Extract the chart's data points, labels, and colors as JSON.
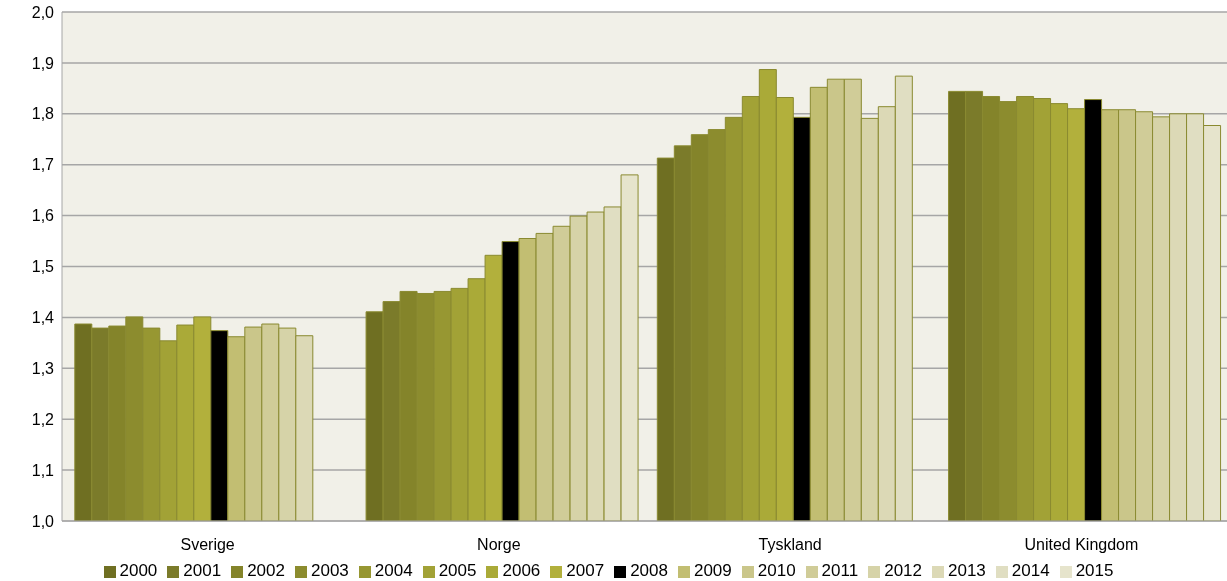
{
  "chart_data": {
    "type": "bar",
    "categories": [
      "Sverige",
      "Norge",
      "Tyskland",
      "United Kingdom"
    ],
    "series": [
      {
        "name": "2000",
        "color": "#6f6f22",
        "values": [
          1.387,
          1.411,
          1.713,
          1.844
        ]
      },
      {
        "name": "2001",
        "color": "#7b7b2a",
        "values": [
          1.379,
          1.431,
          1.737,
          1.844
        ]
      },
      {
        "name": "2002",
        "color": "#84842a",
        "values": [
          1.383,
          1.451,
          1.759,
          1.834
        ]
      },
      {
        "name": "2003",
        "color": "#8c8c2e",
        "values": [
          1.401,
          1.447,
          1.769,
          1.824
        ]
      },
      {
        "name": "2004",
        "color": "#979732",
        "values": [
          1.379,
          1.451,
          1.793,
          1.834
        ]
      },
      {
        "name": "2005",
        "color": "#a2a236",
        "values": [
          1.354,
          1.457,
          1.834,
          1.83
        ]
      },
      {
        "name": "2006",
        "color": "#aaaa38",
        "values": [
          1.385,
          1.476,
          1.887,
          1.82
        ]
      },
      {
        "name": "2007",
        "color": "#b2b03c",
        "values": [
          1.401,
          1.522,
          1.832,
          1.81
        ]
      },
      {
        "name": "2008",
        "color": "#000000",
        "values": [
          1.374,
          1.549,
          1.793,
          1.828
        ]
      },
      {
        "name": "2009",
        "color": "#c2be72",
        "values": [
          1.362,
          1.555,
          1.852,
          1.808
        ]
      },
      {
        "name": "2010",
        "color": "#cac68a",
        "values": [
          1.381,
          1.565,
          1.868,
          1.808
        ]
      },
      {
        "name": "2011",
        "color": "#d0cc98",
        "values": [
          1.387,
          1.579,
          1.868,
          1.804
        ]
      },
      {
        "name": "2012",
        "color": "#d6d3a8",
        "values": [
          1.379,
          1.599,
          1.791,
          1.794
        ]
      },
      {
        "name": "2013",
        "color": "#dcd9b6",
        "values": [
          1.364,
          1.607,
          1.814,
          1.8
        ]
      },
      {
        "name": "2014",
        "color": "#e0dec2",
        "values": [
          null,
          1.617,
          1.874,
          1.8
        ]
      },
      {
        "name": "2015",
        "color": "#e6e4cc",
        "values": [
          null,
          1.68,
          null,
          1.777
        ]
      }
    ],
    "ylim": [
      1.0,
      2.0
    ],
    "yticks": [
      {
        "value": 1.0,
        "label": "1,0"
      },
      {
        "value": 1.1,
        "label": "1,1"
      },
      {
        "value": 1.2,
        "label": "1,2"
      },
      {
        "value": 1.3,
        "label": "1,3"
      },
      {
        "value": 1.4,
        "label": "1,4"
      },
      {
        "value": 1.5,
        "label": "1,5"
      },
      {
        "value": 1.6,
        "label": "1,6"
      },
      {
        "value": 1.7,
        "label": "1,7"
      },
      {
        "value": 1.8,
        "label": "1,8"
      },
      {
        "value": 1.9,
        "label": "1,9"
      },
      {
        "value": 2.0,
        "label": "2,0"
      }
    ],
    "grid": "y",
    "legend": "bottom"
  }
}
